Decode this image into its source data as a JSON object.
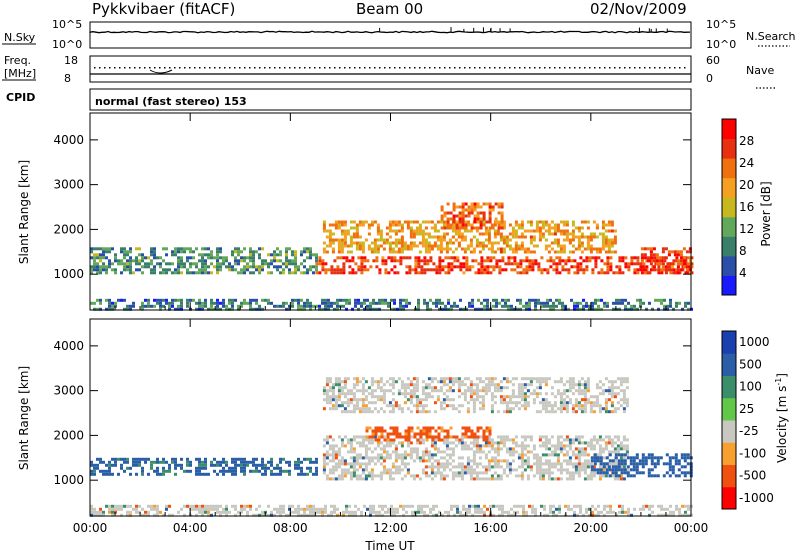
{
  "header": {
    "station": "Pykkvibaer (fitACF)",
    "beam": "Beam 00",
    "date": "02/Nov/2009"
  },
  "strip_panels": {
    "nsky_label": "N.Sky",
    "nsky_top": "10^5",
    "nsky_bottom": "10^0",
    "nsky_right_top": "10^5",
    "nsky_right_bottom": "10^0",
    "nsearch_label": "N.Search",
    "freq_label_line1": "Freq.",
    "freq_label_line2": "[MHz]",
    "freq_top": "18",
    "freq_bottom": "8",
    "nave_label": "Nave",
    "nave_top": "60",
    "nave_bottom": "0",
    "cpid_label": "CPID",
    "cpid_value": "normal (fast stereo) 153"
  },
  "colors": {
    "power_scale": [
      "#1a1aff",
      "#2a4fa8",
      "#3a7f6a",
      "#62a85a",
      "#c8b820",
      "#f5a020",
      "#f07010",
      "#e83010",
      "#ff0000"
    ],
    "velocity_scale": [
      "#ff0000",
      "#f05010",
      "#f7a030",
      "#c8c8c0",
      "#62c84a",
      "#3a8f6a",
      "#2a5fa8",
      "#1a3faf"
    ]
  },
  "chart_data": [
    {
      "type": "heatmap",
      "parameter": "Power",
      "ylabel": "Slant Range [km]",
      "xlabel": "",
      "x_ticks": [
        "00:00",
        "04:00",
        "08:00",
        "12:00",
        "16:00",
        "20:00",
        "00:00"
      ],
      "y_ticks": [
        "1000",
        "2000",
        "3000",
        "4000"
      ],
      "ylim": [
        200,
        4600
      ],
      "xlim_hours": [
        0,
        24
      ],
      "colorbar_label": "Power [dB]",
      "colorbar_ticks": [
        "4",
        "8",
        "12",
        "16",
        "20",
        "24",
        "28"
      ],
      "colorbar_range": [
        0,
        32
      ],
      "features": [
        {
          "hours": [
            0,
            24
          ],
          "range_km": [
            200,
            450
          ],
          "power_db": 8
        },
        {
          "hours": [
            0,
            9
          ],
          "range_km": [
            1000,
            1600
          ],
          "power_db": 10
        },
        {
          "hours": [
            9,
            24
          ],
          "range_km": [
            1000,
            1400
          ],
          "power_db": 26
        },
        {
          "hours": [
            9.3,
            21
          ],
          "range_km": [
            1500,
            2200
          ],
          "power_db": 20
        },
        {
          "hours": [
            14,
            16.5
          ],
          "range_km": [
            2000,
            2600
          ],
          "power_db": 24
        },
        {
          "hours": [
            22,
            24
          ],
          "range_km": [
            1000,
            1600
          ],
          "power_db": 26
        }
      ]
    },
    {
      "type": "heatmap",
      "parameter": "Velocity",
      "ylabel": "Slant Range [km]",
      "xlabel": "Time UT",
      "x_ticks": [
        "00:00",
        "04:00",
        "08:00",
        "12:00",
        "16:00",
        "20:00",
        "00:00"
      ],
      "y_ticks": [
        "1000",
        "2000",
        "3000",
        "4000"
      ],
      "ylim": [
        200,
        4600
      ],
      "xlim_hours": [
        0,
        24
      ],
      "colorbar_label": "Velocity [m s^-1]",
      "colorbar_ticks": [
        "1000",
        "500",
        "100",
        "25",
        "-25",
        "-100",
        "-500",
        "-1000"
      ],
      "features": [
        {
          "hours": [
            0,
            24
          ],
          "range_km": [
            200,
            450
          ],
          "velocity_ms": 0
        },
        {
          "hours": [
            0,
            9
          ],
          "range_km": [
            1100,
            1500
          ],
          "velocity_ms": 200
        },
        {
          "hours": [
            9.3,
            21.5
          ],
          "range_km": [
            1000,
            2000
          ],
          "velocity_ms": 0
        },
        {
          "hours": [
            9.3,
            21.5
          ],
          "range_km": [
            2500,
            3300
          ],
          "velocity_ms": 0
        },
        {
          "hours": [
            11,
            16
          ],
          "range_km": [
            1900,
            2200
          ],
          "velocity_ms": -200
        },
        {
          "hours": [
            20,
            24
          ],
          "range_km": [
            1100,
            1600
          ],
          "velocity_ms": 300
        }
      ]
    }
  ]
}
